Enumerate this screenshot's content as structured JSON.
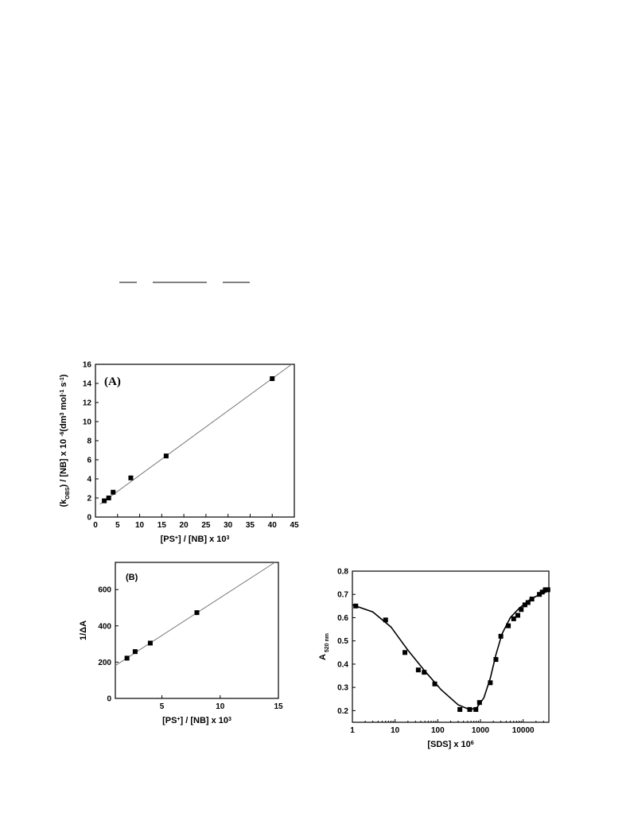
{
  "chart_data": [
    {
      "type": "scatter",
      "panel_label": "(A)",
      "x": [
        2,
        3,
        4,
        8,
        16,
        40
      ],
      "values": [
        1.7,
        2.0,
        2.6,
        4.1,
        6.4,
        14.5
      ],
      "color": "#000000",
      "fit_line": {
        "x": [
          1,
          44.4
        ],
        "y": [
          1.34,
          16
        ]
      },
      "xlim": [
        0,
        45
      ],
      "xticks": [
        0,
        5,
        10,
        15,
        20,
        25,
        30,
        35,
        40,
        45
      ],
      "ylim": [
        0,
        16
      ],
      "yticks": [
        0,
        2,
        4,
        6,
        8,
        10,
        12,
        14,
        16
      ],
      "x_label": [
        {
          "text": "[PS"
        },
        {
          "text": "+",
          "shift": "sup"
        },
        {
          "text": "] / [NB] x 10"
        },
        {
          "text": "3",
          "shift": "sup"
        }
      ],
      "y_label": [
        {
          "text": "(k"
        },
        {
          "text": "OBS",
          "shift": "sub"
        },
        {
          "text": ") / [NB] x 10 "
        },
        {
          "text": "-6",
          "shift": "sup"
        },
        {
          "text": "(dm"
        },
        {
          "text": "3",
          "shift": "sup"
        },
        {
          "text": " mol"
        },
        {
          "text": "-1",
          "shift": "sup"
        },
        {
          "text": " s"
        },
        {
          "text": "-1",
          "shift": "sup"
        },
        {
          "text": ")"
        }
      ]
    },
    {
      "type": "scatter",
      "panel_label": "(B)",
      "x": [
        2,
        2.7,
        4,
        8
      ],
      "values": [
        222,
        258,
        305,
        473
      ],
      "color": "#000000",
      "fit_line": {
        "x": [
          1,
          14.7
        ],
        "y": [
          181,
          750
        ]
      },
      "xlim": [
        1,
        15
      ],
      "xticks": [
        5,
        10,
        15
      ],
      "ylim": [
        0,
        750
      ],
      "yticks": [
        0,
        200,
        400,
        600
      ],
      "x_label": [
        {
          "text": "[PS"
        },
        {
          "text": "+",
          "shift": "sup"
        },
        {
          "text": "] / [NB] x 10"
        },
        {
          "text": "3",
          "shift": "sup"
        }
      ],
      "y_label": [
        {
          "text": "1/ΔA"
        }
      ]
    },
    {
      "type": "scatter",
      "xscale": "log",
      "x": [
        1.2,
        6,
        17,
        35,
        48,
        85,
        330,
        560,
        780,
        950,
        1700,
        2300,
        3000,
        4500,
        6000,
        7500,
        9000,
        11000,
        13000,
        16000,
        24000,
        28000,
        33000,
        38000
      ],
      "values": [
        0.65,
        0.59,
        0.45,
        0.375,
        0.365,
        0.315,
        0.205,
        0.205,
        0.205,
        0.235,
        0.32,
        0.42,
        0.52,
        0.565,
        0.595,
        0.61,
        0.635,
        0.655,
        0.665,
        0.68,
        0.7,
        0.71,
        0.72,
        0.72
      ],
      "color": "#000000",
      "fit_line": {
        "x": [
          1,
          3,
          8,
          20,
          50,
          120,
          300,
          550,
          800,
          1200,
          1700,
          2300,
          3200,
          5000,
          8000,
          15000,
          25000,
          40000
        ],
        "y": [
          0.655,
          0.625,
          0.56,
          0.46,
          0.37,
          0.29,
          0.225,
          0.205,
          0.21,
          0.255,
          0.34,
          0.44,
          0.53,
          0.6,
          0.64,
          0.68,
          0.7,
          0.715
        ]
      },
      "xlim": [
        1,
        40000
      ],
      "xticks": [
        1,
        10,
        100,
        1000,
        10000
      ],
      "ylim": [
        0.15,
        0.8
      ],
      "yticks": [
        0.2,
        0.3,
        0.4,
        0.5,
        0.6,
        0.7,
        0.8
      ],
      "x_label": [
        {
          "text": "[SDS] x 10"
        },
        {
          "text": "6",
          "shift": "sup"
        }
      ],
      "y_label": [
        {
          "text": "A"
        },
        {
          "text": " 520 nm",
          "shift": "sub"
        }
      ]
    }
  ]
}
